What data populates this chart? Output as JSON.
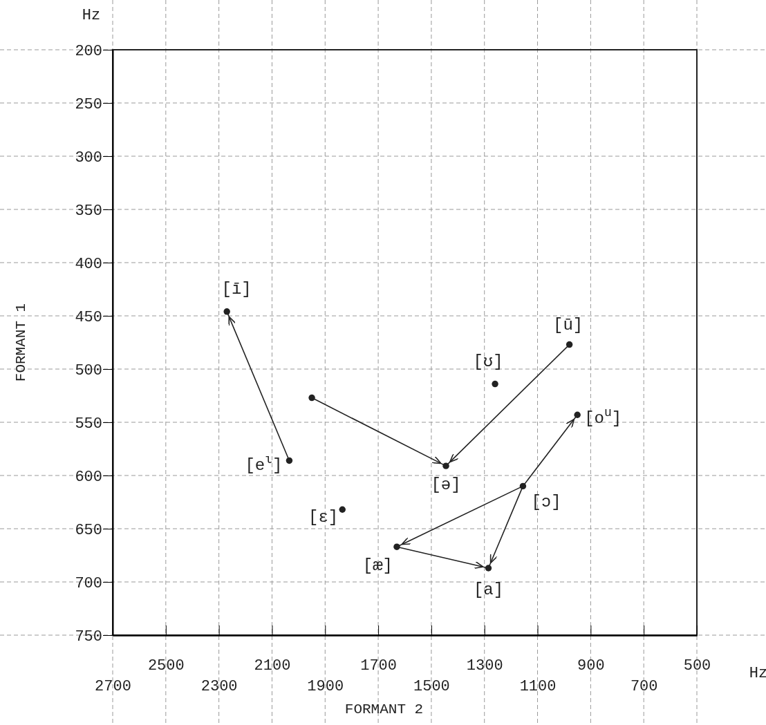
{
  "chart_data": {
    "type": "scatter",
    "xlabel": "FORMANT 2",
    "ylabel": "FORMANT 1",
    "xlim": [
      2700,
      500
    ],
    "xticks": [
      2700,
      2300,
      1900,
      1500,
      1100,
      700
    ],
    "x2lim": [
      2700,
      500
    ],
    "x2ticks": [
      2500,
      2100,
      1700,
      1300,
      900,
      500
    ],
    "ylim": [
      750,
      200
    ],
    "yticks": [
      200,
      250,
      300,
      350,
      400,
      450,
      500,
      550,
      600,
      650,
      700,
      750
    ],
    "grid": true,
    "series": [
      {
        "marker": "circle",
        "color": "#222222",
        "x": [
          2270,
          2035,
          1835,
          1950,
          1260,
          980,
          950,
          1445,
          1155,
          1630,
          1285
        ],
        "values": [
          446,
          586,
          632,
          527,
          514,
          477,
          543,
          591,
          610,
          667,
          687
        ]
      },
      {
        "type": "line",
        "color": "#222222",
        "x": [
          2035,
          2270
        ],
        "values": [
          586,
          446
        ]
      },
      {
        "type": "line",
        "color": "#222222",
        "x": [
          1950,
          1445
        ],
        "values": [
          527,
          591
        ]
      },
      {
        "type": "line",
        "color": "#222222",
        "x": [
          980,
          1445
        ],
        "values": [
          477,
          591
        ]
      },
      {
        "type": "line",
        "color": "#222222",
        "x": [
          1155,
          950
        ],
        "values": [
          610,
          543
        ]
      },
      {
        "type": "line",
        "color": "#222222",
        "x": [
          1155,
          1630
        ],
        "values": [
          610,
          667
        ]
      },
      {
        "type": "line",
        "color": "#222222",
        "x": [
          1155,
          1285
        ],
        "values": [
          610,
          687
        ]
      },
      {
        "type": "line",
        "color": "#222222",
        "x": [
          1630,
          1285
        ],
        "values": [
          667,
          687
        ]
      }
    ],
    "annotations": [
      {
        "text": "[ī]",
        "x": 2270,
        "y": 446
      },
      {
        "text": "[e$^{ι}$]",
        "x": 2035,
        "y": 586
      },
      {
        "text": "[ɛ]",
        "x": 1835,
        "y": 632
      },
      {
        "text": "[ʊ]",
        "x": 1260,
        "y": 514
      },
      {
        "text": "[ū]",
        "x": 980,
        "y": 477
      },
      {
        "text": "[o$^{u}$]",
        "x": 950,
        "y": 543
      },
      {
        "text": "[ə]",
        "x": 1445,
        "y": 591
      },
      {
        "text": "[ɔ]",
        "x": 1155,
        "y": 610
      },
      {
        "text": "[æ]",
        "x": 1630,
        "y": 667
      },
      {
        "text": "[a]",
        "x": 1285,
        "y": 687
      },
      "Hz",
      "Hz"
    ]
  }
}
